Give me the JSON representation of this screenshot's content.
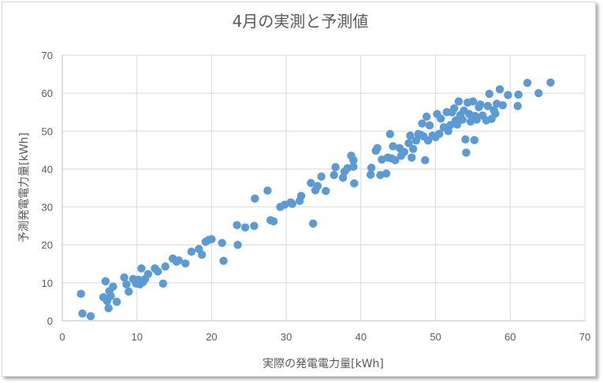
{
  "chart_data": {
    "type": "scatter",
    "title": "4月の実測と予測値",
    "xlabel": "実際の発電電力量[kWh]",
    "ylabel": "予測発電電力量[kWh]",
    "xlim": [
      0,
      70
    ],
    "ylim": [
      0,
      70
    ],
    "xticks": [
      0,
      10,
      20,
      30,
      40,
      50,
      60,
      70
    ],
    "yticks": [
      0,
      10,
      20,
      30,
      40,
      50,
      60,
      70
    ],
    "grid": true,
    "marker_color": "#5b9bd5",
    "points": [
      [
        2.5,
        7.1
      ],
      [
        2.7,
        1.9
      ],
      [
        3.8,
        1.2
      ],
      [
        5.5,
        6.2
      ],
      [
        5.8,
        10.4
      ],
      [
        6.0,
        5.2
      ],
      [
        6.2,
        3.3
      ],
      [
        6.3,
        7.8
      ],
      [
        6.5,
        6.5
      ],
      [
        6.8,
        9.0
      ],
      [
        7.3,
        5.0
      ],
      [
        8.3,
        11.4
      ],
      [
        8.6,
        9.6
      ],
      [
        8.9,
        7.7
      ],
      [
        9.5,
        11.0
      ],
      [
        9.9,
        9.8
      ],
      [
        10.2,
        10.8
      ],
      [
        10.4,
        9.6
      ],
      [
        10.6,
        13.8
      ],
      [
        10.8,
        10.2
      ],
      [
        11.1,
        11.0
      ],
      [
        11.5,
        12.3
      ],
      [
        12.4,
        13.8
      ],
      [
        12.8,
        13.0
      ],
      [
        13.5,
        9.8
      ],
      [
        13.8,
        14.3
      ],
      [
        14.8,
        16.4
      ],
      [
        15.3,
        15.6
      ],
      [
        15.6,
        15.9
      ],
      [
        16.5,
        15.1
      ],
      [
        17.3,
        18.2
      ],
      [
        18.3,
        18.9
      ],
      [
        18.7,
        17.4
      ],
      [
        19.2,
        20.8
      ],
      [
        19.6,
        21.3
      ],
      [
        20.0,
        21.5
      ],
      [
        21.4,
        20.5
      ],
      [
        21.6,
        15.8
      ],
      [
        23.4,
        25.2
      ],
      [
        23.5,
        20.0
      ],
      [
        24.5,
        24.6
      ],
      [
        25.8,
        32.2
      ],
      [
        25.7,
        25.0
      ],
      [
        27.5,
        34.3
      ],
      [
        27.9,
        26.5
      ],
      [
        28.3,
        26.2
      ],
      [
        29.2,
        30.0
      ],
      [
        29.8,
        30.6
      ],
      [
        30.6,
        31.2
      ],
      [
        30.8,
        30.8
      ],
      [
        31.8,
        31.6
      ],
      [
        32.0,
        32.9
      ],
      [
        33.3,
        36.3
      ],
      [
        33.6,
        25.6
      ],
      [
        33.9,
        34.4
      ],
      [
        34.2,
        35.5
      ],
      [
        34.7,
        38.0
      ],
      [
        35.3,
        34.2
      ],
      [
        36.4,
        38.4
      ],
      [
        36.6,
        40.5
      ],
      [
        37.6,
        37.7
      ],
      [
        37.8,
        39.3
      ],
      [
        38.2,
        40.2
      ],
      [
        38.7,
        43.5
      ],
      [
        39.0,
        42.3
      ],
      [
        39.0,
        40.6
      ],
      [
        39.1,
        36.2
      ],
      [
        41.3,
        38.5
      ],
      [
        41.4,
        40.3
      ],
      [
        42.0,
        44.8
      ],
      [
        42.2,
        45.5
      ],
      [
        42.6,
        38.4
      ],
      [
        42.8,
        42.5
      ],
      [
        43.4,
        38.8
      ],
      [
        43.6,
        43.0
      ],
      [
        43.9,
        49.2
      ],
      [
        44.1,
        42.8
      ],
      [
        44.3,
        46.0
      ],
      [
        44.6,
        42.3
      ],
      [
        45.2,
        45.5
      ],
      [
        45.4,
        43.5
      ],
      [
        45.8,
        44.5
      ],
      [
        46.4,
        46.8
      ],
      [
        46.6,
        48.8
      ],
      [
        46.8,
        43.0
      ],
      [
        47.0,
        45.3
      ],
      [
        47.4,
        47.5
      ],
      [
        47.7,
        49.2
      ],
      [
        48.0,
        49.0
      ],
      [
        48.2,
        52.0
      ],
      [
        48.4,
        48.6
      ],
      [
        48.6,
        42.3
      ],
      [
        48.8,
        53.8
      ],
      [
        49.0,
        47.5
      ],
      [
        49.2,
        51.5
      ],
      [
        49.6,
        48.8
      ],
      [
        50.0,
        48.4
      ],
      [
        50.2,
        54.5
      ],
      [
        50.5,
        49.3
      ],
      [
        50.7,
        53.3
      ],
      [
        51.1,
        51.0
      ],
      [
        51.5,
        55.0
      ],
      [
        51.7,
        50.0
      ],
      [
        52.0,
        51.6
      ],
      [
        52.2,
        54.9
      ],
      [
        52.5,
        56.0
      ],
      [
        52.7,
        52.8
      ],
      [
        52.9,
        51.7
      ],
      [
        53.1,
        57.8
      ],
      [
        53.3,
        54.2
      ],
      [
        53.6,
        53.0
      ],
      [
        53.8,
        55.4
      ],
      [
        54.0,
        47.8
      ],
      [
        54.1,
        44.3
      ],
      [
        54.3,
        57.5
      ],
      [
        54.5,
        54.5
      ],
      [
        54.7,
        52.5
      ],
      [
        55.0,
        57.8
      ],
      [
        55.2,
        47.6
      ],
      [
        55.3,
        54.0
      ],
      [
        55.5,
        53.0
      ],
      [
        55.8,
        56.3
      ],
      [
        56.0,
        57.0
      ],
      [
        56.3,
        54.1
      ],
      [
        56.8,
        52.8
      ],
      [
        57.0,
        56.6
      ],
      [
        57.2,
        59.8
      ],
      [
        57.5,
        53.2
      ],
      [
        57.8,
        55.5
      ],
      [
        58.0,
        54.6
      ],
      [
        58.2,
        57.2
      ],
      [
        58.6,
        61.0
      ],
      [
        59.0,
        56.8
      ],
      [
        59.7,
        59.5
      ],
      [
        61.0,
        56.6
      ],
      [
        61.1,
        59.6
      ],
      [
        62.3,
        62.7
      ],
      [
        63.8,
        60.0
      ],
      [
        65.4,
        62.8
      ]
    ]
  }
}
